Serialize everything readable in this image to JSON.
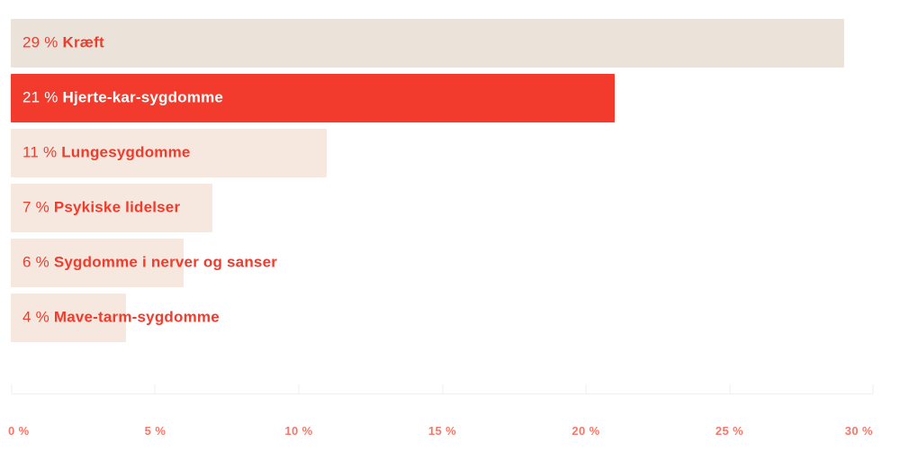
{
  "chart_data": {
    "type": "bar",
    "orientation": "horizontal",
    "title": "",
    "xlabel": "",
    "ylabel": "",
    "xlim": [
      0,
      30
    ],
    "grid": false,
    "legend": false,
    "categories": [
      "Kræft",
      "Hjerte-kar-sygdomme",
      "Lungesygdomme",
      "Psykiske lidelser",
      "Sygdomme i nerver og sanser",
      "Mave-tarm-sygdomme"
    ],
    "values": [
      29,
      21,
      11,
      7,
      6,
      4
    ],
    "bars": [
      {
        "value": 29,
        "value_label": "29 %",
        "category": "Kræft",
        "fill": "#EBE3D9",
        "text_color": "#F23B2C",
        "highlighted": false
      },
      {
        "value": 21,
        "value_label": "21 %",
        "category": "Hjerte-kar-sygdomme",
        "fill": "#F23B2C",
        "text_color": "#FFFFFF",
        "highlighted": true
      },
      {
        "value": 11,
        "value_label": "11 %",
        "category": "Lungesygdomme",
        "fill": "#F7E8DF",
        "text_color": "#F23B2C",
        "highlighted": false
      },
      {
        "value": 7,
        "value_label": "7 %",
        "category": "Psykiske lidelser",
        "fill": "#F7E8DF",
        "text_color": "#F23B2C",
        "highlighted": false
      },
      {
        "value": 6,
        "value_label": "6 %",
        "category": "Sygdomme i nerver og sanser",
        "fill": "#F7E8DF",
        "text_color": "#F23B2C",
        "highlighted": false
      },
      {
        "value": 4,
        "value_label": "4 %",
        "category": "Mave-tarm-sygdomme",
        "fill": "#F7E8DF",
        "text_color": "#F23B2C",
        "highlighted": false
      }
    ],
    "x_tick_values": [
      0,
      5,
      10,
      15,
      20,
      25,
      30
    ],
    "x_tick_labels": [
      "0 %",
      "5 %",
      "10 %",
      "15 %",
      "20 %",
      "25 %",
      "30 %"
    ],
    "axis_position": "bottom",
    "colors": {
      "highlight": "#F23B2C",
      "bar_neutral_top": "#EBE3D9",
      "bar_neutral": "#F7E8DF",
      "label_red": "#F23B2C",
      "label_white": "#FFFFFF",
      "axis_label": "#F5786A",
      "axis_line": "#F1EEEB",
      "background": "#FFFFFF"
    }
  }
}
